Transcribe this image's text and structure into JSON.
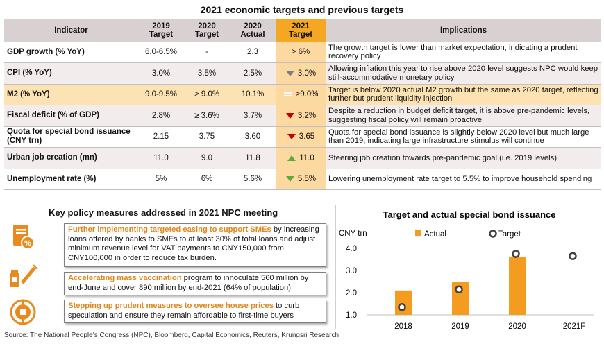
{
  "title": "2021 economic targets and previous targets",
  "table": {
    "headers": {
      "indicator": "Indicator",
      "t2019": [
        "2019",
        "Target"
      ],
      "t2020": [
        "2020",
        "Target"
      ],
      "a2020": [
        "2020",
        "Actual"
      ],
      "t2021": [
        "2021",
        "Target"
      ],
      "implications": "Implications"
    },
    "rows": [
      {
        "name": "GDP growth (% YoY)",
        "t2019": "6.0-6.5%",
        "t2020": "-",
        "a2020": "2.3",
        "t2021": "> 6%",
        "arrow": "none",
        "impl": "The growth target is lower than market expectation, indicating a prudent recovery policy"
      },
      {
        "name": "CPI (% YoY)",
        "t2019": "3.0%",
        "t2020": "3.5%",
        "a2020": "2.5%",
        "t2021": "3.0%",
        "arrow": "down-grey",
        "impl": "Allowing inflation this year to rise above 2020 level suggests NPC would keep still-accommodative monetary policy"
      },
      {
        "name": "M2 (% YoY)",
        "t2019": "9.0-9.5%",
        "t2020": "> 9.0%",
        "a2020": "10.1%",
        "t2021": ">9.0%",
        "arrow": "equal",
        "impl": "Target is below 2020 actual M2 growth but the same as 2020 target, reflecting further but prudent liquidity injection"
      },
      {
        "name": "Fiscal deficit  (% of GDP)",
        "t2019": "2.8%",
        "t2020": "≥ 3.6%",
        "a2020": "3.7%",
        "t2021": "3.2%",
        "arrow": "down-red",
        "impl": "Despite a reduction in budget deficit target, it is above pre-pandemic levels, suggesting fiscal policy will remain proactive"
      },
      {
        "name": "Quota for special bond issuance (CNY trn)",
        "t2019": "2.15",
        "t2020": "3.75",
        "a2020": "3.60",
        "t2021": "3.65",
        "arrow": "down-red",
        "impl": "Quota for special bond issuance is slightly below 2020 level but much large than 2019, indicating large infrastructure stimulus will continue"
      },
      {
        "name": "Urban job creation (mn)",
        "t2019": "11.0",
        "t2020": "9.0",
        "a2020": "11.8",
        "t2021": "11.0",
        "arrow": "up-green",
        "impl": "Steering job creation towards pre-pandemic goal (i.e. 2019 levels)"
      },
      {
        "name": "Unemployment rate (%)",
        "t2019": "5%",
        "t2020": "6%",
        "a2020": "5.6%",
        "t2021": "5.5%",
        "arrow": "down-green",
        "impl": "Lowering unemployment rate target to 5.5% to improve household spending"
      }
    ]
  },
  "policy": {
    "title": "Key policy measures addressed in 2021 NPC meeting",
    "items": [
      {
        "icon": "tax-document-icon",
        "head": "Further implementing targeted easing to support SMEs",
        "body": " by increasing loans offered by banks to SMEs to at least 30% of total loans and adjust minimum revenue level for VAT payments to CNY150,000 from CNY100,000 in order to reduce tax burden."
      },
      {
        "icon": "vaccine-icon",
        "head": "Accelerating mass vaccination",
        "body": " program to innoculate 560 million by end-June and cover 890 million by end-2021 (64% of population)."
      },
      {
        "icon": "coin-icon",
        "head": "Stepping up prudent measures to oversee house prices",
        "body": " to curb speculation and ensure they remain affordable to first-time buyers"
      }
    ]
  },
  "chart_data": {
    "type": "bar",
    "title": "Target and actual special bond issuance",
    "ylabel": "CNY trn",
    "categories": [
      "2018",
      "2019",
      "2020",
      "2021F"
    ],
    "series": [
      {
        "name": "Actual",
        "values": [
          2.1,
          2.5,
          3.6,
          null
        ],
        "color": "#f39c1f"
      },
      {
        "name": "Target",
        "values": [
          1.35,
          2.15,
          3.75,
          3.65
        ],
        "color": "#404040"
      }
    ],
    "ylim": [
      1.0,
      4.0
    ],
    "yticks": [
      "1.0",
      "2.0",
      "3.0",
      "4.0"
    ],
    "legend": "top"
  },
  "source": "Source: The National People’s Congress (NPC), Bloomberg, Capital Economics, Reuters, Krungsri Research",
  "colors": {
    "accent": "#f5a623",
    "header": "#d9d0d2"
  }
}
